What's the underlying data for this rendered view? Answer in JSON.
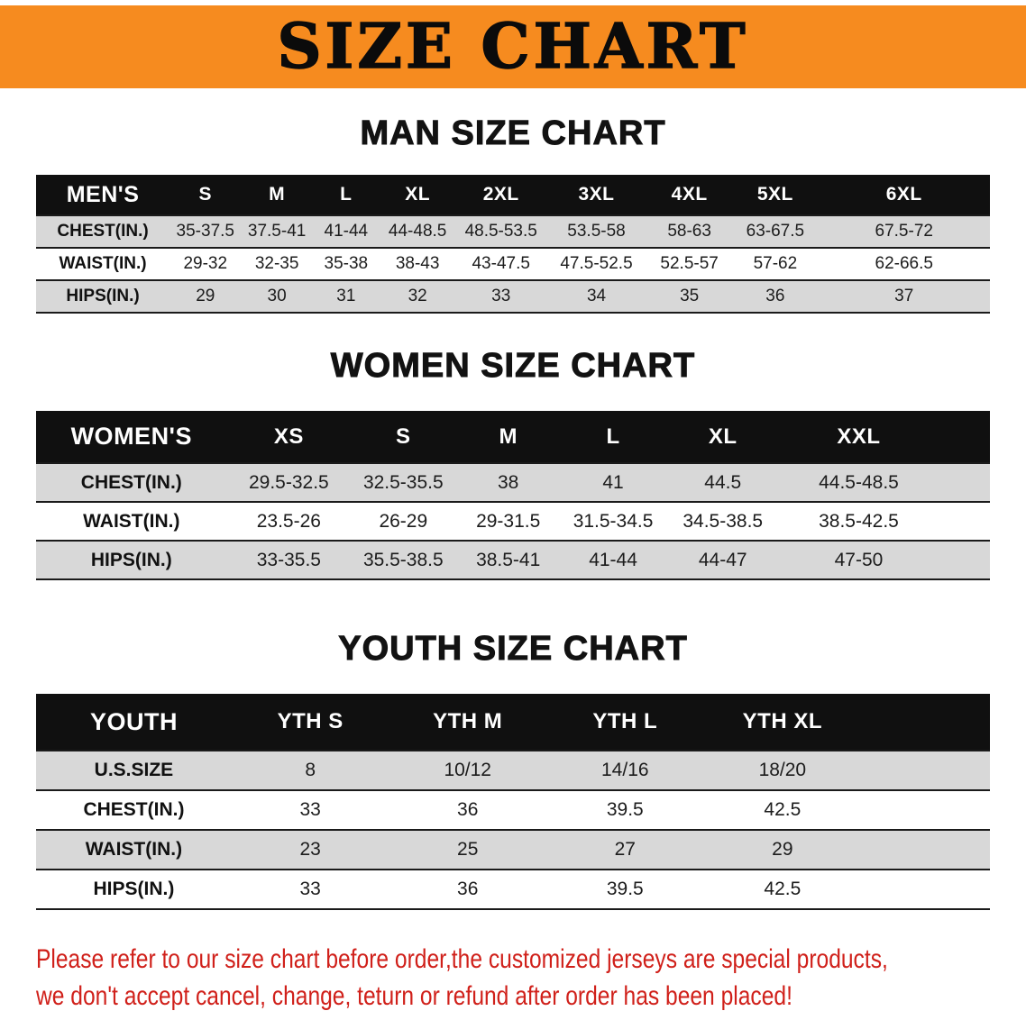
{
  "banner": {
    "title": "SIZE CHART",
    "bg_color": "#f68b1f",
    "text_color": "#0b0b0b"
  },
  "chart_data": [
    {
      "type": "table",
      "title": "MAN SIZE CHART",
      "columns": [
        "MEN'S",
        "S",
        "M",
        "L",
        "XL",
        "2XL",
        "3XL",
        "4XL",
        "5XL",
        "6XL"
      ],
      "rows": [
        [
          "CHEST(IN.)",
          "35-37.5",
          "37.5-41",
          "41-44",
          "44-48.5",
          "48.5-53.5",
          "53.5-58",
          "58-63",
          "63-67.5",
          "67.5-72"
        ],
        [
          "WAIST(IN.)",
          "29-32",
          "32-35",
          "35-38",
          "38-43",
          "43-47.5",
          "47.5-52.5",
          "52.5-57",
          "57-62",
          "62-66.5"
        ],
        [
          "HIPS(IN.)",
          "29",
          "30",
          "31",
          "32",
          "33",
          "34",
          "35",
          "36",
          "37"
        ]
      ],
      "layout": {
        "header_bg": "#101010",
        "alt_row_bg": "#d8d8d8",
        "grid": "horizontal-lines"
      }
    },
    {
      "type": "table",
      "title": "WOMEN SIZE CHART",
      "columns": [
        "WOMEN'S",
        "XS",
        "S",
        "M",
        "L",
        "XL",
        "XXL"
      ],
      "rows": [
        [
          "CHEST(IN.)",
          "29.5-32.5",
          "32.5-35.5",
          "38",
          "41",
          "44.5",
          "44.5-48.5"
        ],
        [
          "WAIST(IN.)",
          "23.5-26",
          "26-29",
          "29-31.5",
          "31.5-34.5",
          "34.5-38.5",
          "38.5-42.5"
        ],
        [
          "HIPS(IN.)",
          "33-35.5",
          "35.5-38.5",
          "38.5-41",
          "41-44",
          "44-47",
          "47-50"
        ]
      ],
      "layout": {
        "header_bg": "#101010",
        "alt_row_bg": "#d8d8d8",
        "grid": "horizontal-lines"
      }
    },
    {
      "type": "table",
      "title": "YOUTH SIZE CHART",
      "columns": [
        "YOUTH",
        "YTH S",
        "YTH M",
        "YTH L",
        "YTH XL"
      ],
      "rows": [
        [
          "U.S.SIZE",
          "8",
          "10/12",
          "14/16",
          "18/20"
        ],
        [
          "CHEST(IN.)",
          "33",
          "36",
          "39.5",
          "42.5"
        ],
        [
          "WAIST(IN.)",
          "23",
          "25",
          "27",
          "29"
        ],
        [
          "HIPS(IN.)",
          "33",
          "36",
          "39.5",
          "42.5"
        ]
      ],
      "layout": {
        "header_bg": "#101010",
        "alt_row_bg": "#d8d8d8",
        "grid": "horizontal-lines"
      }
    }
  ],
  "footer": {
    "lines": [
      "Please refer to our size chart before order,the customized jerseys are special products,",
      "we don't accept cancel, change, teturn or refund after order has been placed!"
    ],
    "color": "#d0201a"
  }
}
